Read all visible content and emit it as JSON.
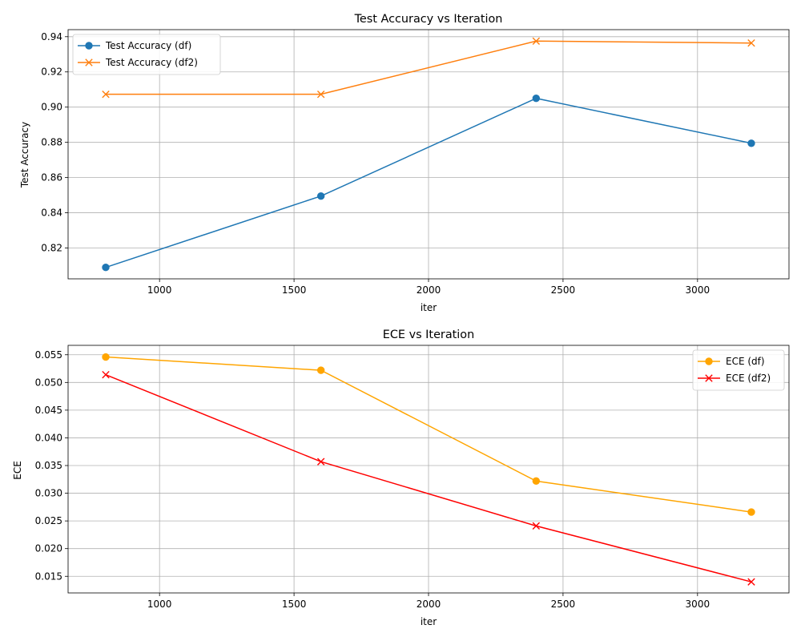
{
  "chart_data": [
    {
      "type": "line",
      "title": "Test Accuracy vs Iteration",
      "xlabel": "iter",
      "ylabel": "Test Accuracy",
      "xlim": [
        660,
        3340
      ],
      "ylim": [
        0.8025,
        0.944
      ],
      "xticks": [
        1000,
        1500,
        2000,
        2500,
        3000
      ],
      "xtick_labels": [
        "1000",
        "1500",
        "2000",
        "2500",
        "3000"
      ],
      "yticks": [
        0.82,
        0.84,
        0.86,
        0.88,
        0.9,
        0.92,
        0.94
      ],
      "ytick_labels": [
        "0.82",
        "0.84",
        "0.86",
        "0.88",
        "0.90",
        "0.92",
        "0.94"
      ],
      "grid": true,
      "legend_position": "upper-left",
      "x": [
        800,
        1600,
        2400,
        3200
      ],
      "series": [
        {
          "name": "Test Accuracy (df)",
          "values": [
            0.809,
            0.8495,
            0.905,
            0.8795
          ],
          "color": "#1f77b4",
          "marker": "circle"
        },
        {
          "name": "Test Accuracy (df2)",
          "values": [
            0.9073,
            0.9073,
            0.9375,
            0.9364
          ],
          "color": "#ff7f0e",
          "marker": "x"
        }
      ]
    },
    {
      "type": "line",
      "title": "ECE vs Iteration",
      "xlabel": "iter",
      "ylabel": "ECE",
      "xlim": [
        660,
        3340
      ],
      "ylim": [
        0.012,
        0.0567
      ],
      "xticks": [
        1000,
        1500,
        2000,
        2500,
        3000
      ],
      "xtick_labels": [
        "1000",
        "1500",
        "2000",
        "2500",
        "3000"
      ],
      "yticks": [
        0.015,
        0.02,
        0.025,
        0.03,
        0.035,
        0.04,
        0.045,
        0.05,
        0.055
      ],
      "ytick_labels": [
        "0.015",
        "0.020",
        "0.025",
        "0.030",
        "0.035",
        "0.040",
        "0.045",
        "0.050",
        "0.055"
      ],
      "grid": true,
      "legend_position": "upper-right",
      "x": [
        800,
        1600,
        2400,
        3200
      ],
      "series": [
        {
          "name": "ECE (df)",
          "values": [
            0.0546,
            0.0522,
            0.0322,
            0.0266
          ],
          "color": "#ffa500",
          "marker": "circle"
        },
        {
          "name": "ECE (df2)",
          "values": [
            0.0514,
            0.0357,
            0.0241,
            0.014
          ],
          "color": "#ff0000",
          "marker": "x"
        }
      ]
    }
  ]
}
